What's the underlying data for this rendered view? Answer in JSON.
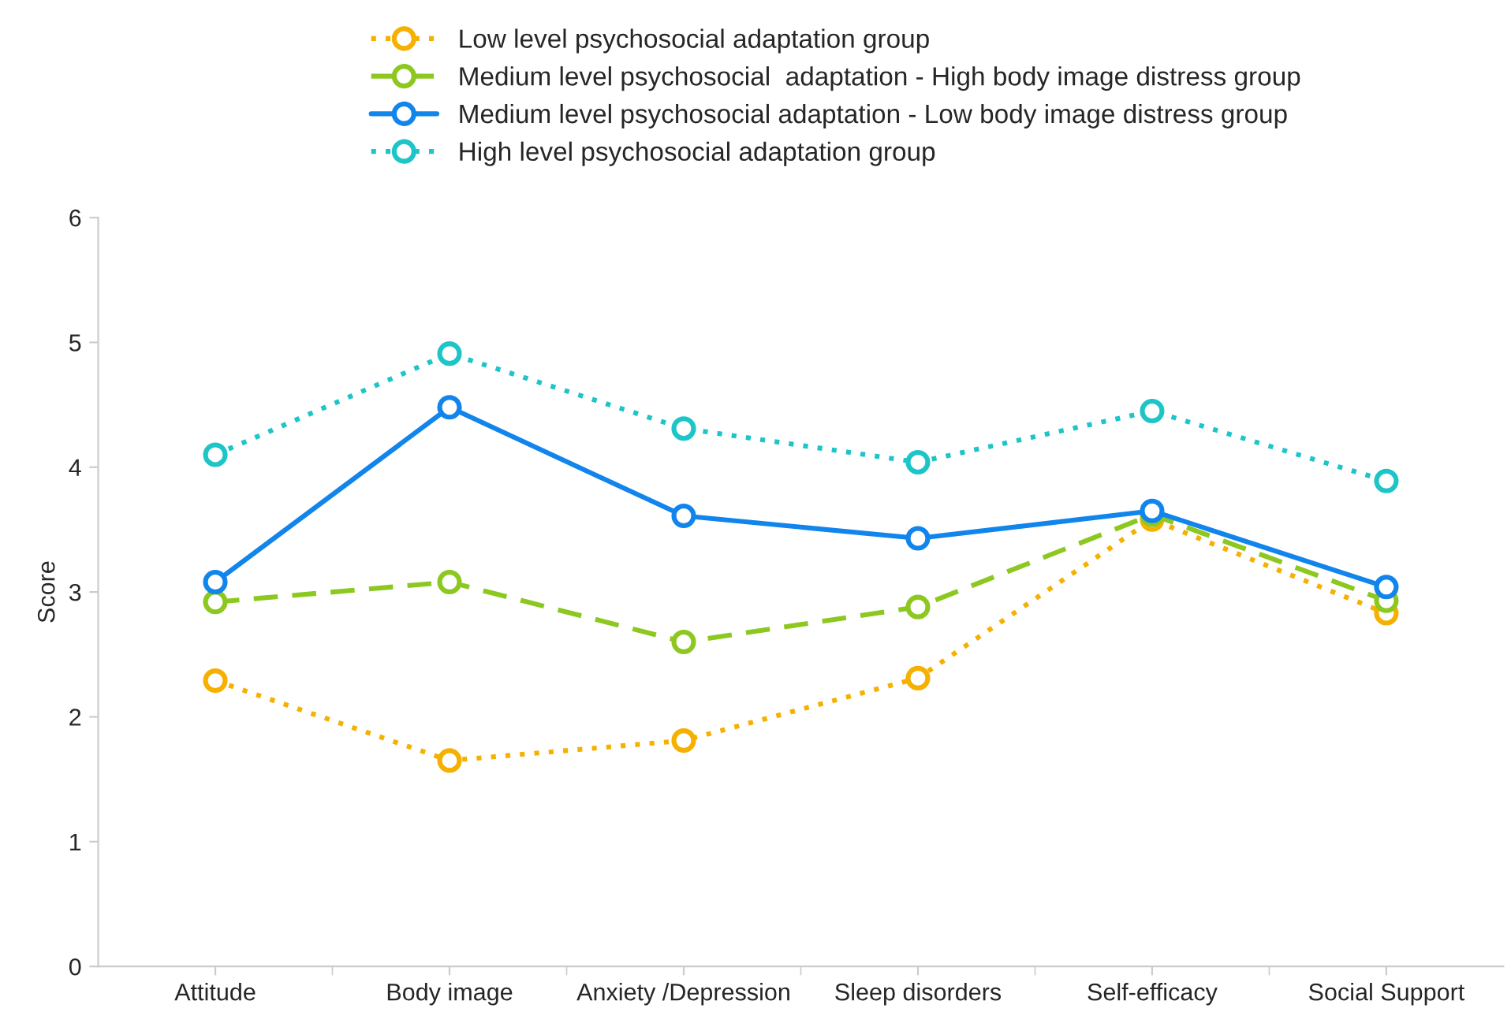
{
  "chart_data": {
    "type": "line",
    "ylabel": "Score",
    "categories": [
      "Attitude",
      "Body image",
      "Anxiety /Depression",
      "Sleep disorders",
      "Self-efficacy",
      "Social Support"
    ],
    "series": [
      {
        "name": "Low level psychosocial adaptation group",
        "color": "#f5b000",
        "line_style": "dotted",
        "values": [
          2.29,
          1.65,
          1.81,
          2.31,
          3.58,
          2.83
        ]
      },
      {
        "name": "Medium level psychosocial  adaptation - High body image distress group",
        "color": "#8cc820",
        "line_style": "dashed",
        "values": [
          2.92,
          3.08,
          2.6,
          2.88,
          3.62,
          2.93
        ]
      },
      {
        "name": "Medium level psychosocial adaptation - Low body image distress group",
        "color": "#1185ec",
        "line_style": "solid",
        "values": [
          3.08,
          4.48,
          3.61,
          3.43,
          3.65,
          3.04
        ]
      },
      {
        "name": "High level psychosocial adaptation group",
        "color": "#1ec5c8",
        "line_style": "dotted",
        "values": [
          4.1,
          4.91,
          4.31,
          4.04,
          4.45,
          3.89
        ]
      }
    ],
    "ylim": [
      0,
      6
    ],
    "yticks": [
      0,
      1,
      2,
      3,
      4,
      5,
      6
    ],
    "grid": false,
    "legend": "top",
    "marker": "circle"
  }
}
